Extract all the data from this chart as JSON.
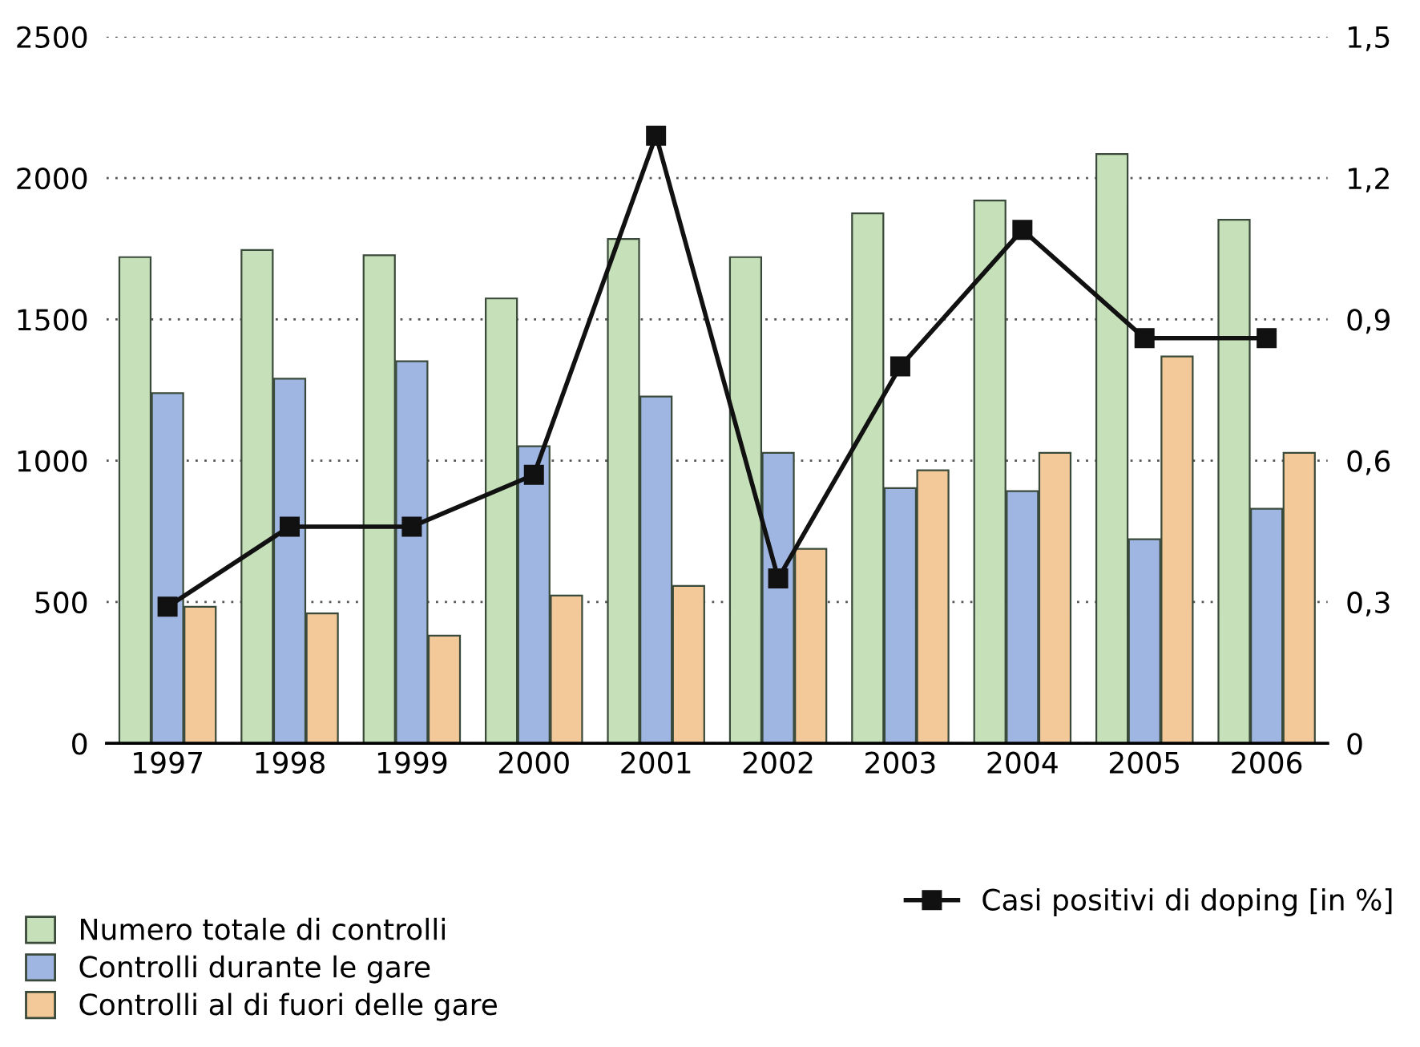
{
  "chart_data": {
    "type": "bar",
    "categories": [
      "1997",
      "1998",
      "1999",
      "2000",
      "2001",
      "2002",
      "2003",
      "2004",
      "2005",
      "2006"
    ],
    "series": [
      {
        "name": "Numero totale di controlli",
        "color": "#c6e0b9",
        "values": [
          1720,
          1745,
          1727,
          1574,
          1784,
          1720,
          1875,
          1920,
          2085,
          1852
        ]
      },
      {
        "name": "Controlli durante le gare",
        "color": "#9fb6e2",
        "values": [
          1239,
          1290,
          1352,
          1051,
          1227,
          1028,
          903,
          892,
          722,
          830
        ]
      },
      {
        "name": "Controlli al di fuori delle gare",
        "color": "#f4c99a",
        "values": [
          483,
          460,
          381,
          523,
          557,
          688,
          966,
          1028,
          1369,
          1028
        ]
      },
      {
        "name": "Casi positivi di doping [in %]",
        "type": "line",
        "axis": "y2",
        "color": "#111111",
        "marker": "square",
        "line_style": "solid",
        "values": [
          0.29,
          0.46,
          0.46,
          0.57,
          1.29,
          0.35,
          0.8,
          1.09,
          0.86,
          0.86
        ]
      }
    ],
    "ylim": [
      0,
      2500
    ],
    "yticks": [
      0,
      500,
      1000,
      1500,
      2000,
      2500
    ],
    "y2lim": [
      0,
      1.5
    ],
    "y2ticks": [
      0,
      {
        "value": 0.3,
        "label": "0,3"
      },
      {
        "value": 0.6,
        "label": "0,6"
      },
      {
        "value": 0.9,
        "label": "0,9"
      },
      {
        "value": 1.2,
        "label": "1,2"
      },
      {
        "value": 1.5,
        "label": "1,5"
      }
    ],
    "grid": "y",
    "legend": "bottom"
  }
}
